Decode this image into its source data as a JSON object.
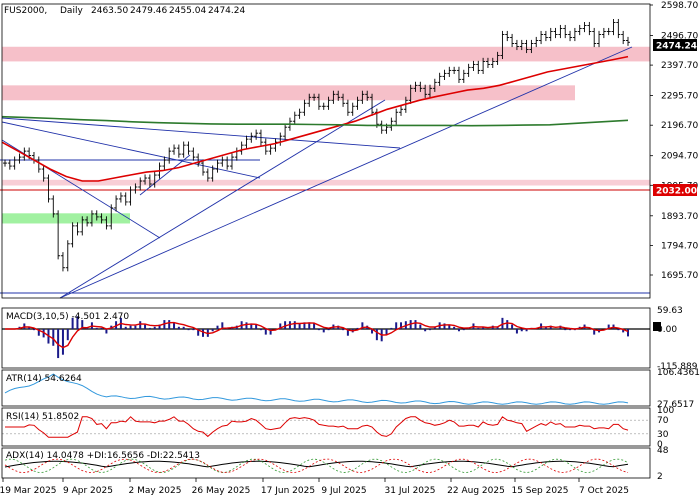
{
  "chart_data": {
    "type": "line",
    "symbol": "FUS2000,",
    "timeframe": "Daily",
    "ohlc": {
      "open": "2463.50",
      "high": "2479.46",
      "low": "2455.04",
      "close": "2474.24"
    },
    "last_price_label": "2474.24",
    "level_label": "2032.00",
    "price_ticks": [
      "2598.70",
      "2496.70",
      "2397.70",
      "2295.70",
      "2196.70",
      "2094.70",
      "1995.70",
      "1893.70",
      "1794.70",
      "1695.70"
    ],
    "price_tick_values": [
      2598.7,
      2496.7,
      2397.7,
      2295.7,
      2196.7,
      2094.7,
      1995.7,
      1893.7,
      1794.7,
      1695.7
    ],
    "date_ticks": [
      "19 Mar 2025",
      "9 Apr 2025",
      "2 May 2025",
      "26 May 2025",
      "17 Jun 2025",
      "9 Jul 2025",
      "31 Jul 2025",
      "22 Aug 2025",
      "15 Sep 2025",
      "7 Oct 2025"
    ],
    "close_series": [
      2070,
      2060,
      2080,
      2090,
      2110,
      2095,
      2080,
      2050,
      2020,
      1950,
      1900,
      1760,
      1720,
      1800,
      1860,
      1840,
      1880,
      1870,
      1900,
      1890,
      1880,
      1860,
      1920,
      1950,
      1960,
      1940,
      1980,
      1990,
      2010,
      2020,
      2000,
      2030,
      2060,
      2080,
      2110,
      2120,
      2100,
      2130,
      2110,
      2090,
      2070,
      2040,
      2020,
      2050,
      2070,
      2080,
      2060,
      2090,
      2110,
      2130,
      2150,
      2160,
      2170,
      2140,
      2110,
      2120,
      2140,
      2160,
      2190,
      2210,
      2230,
      2240,
      2270,
      2290,
      2290,
      2260,
      2260,
      2280,
      2300,
      2290,
      2270,
      2240,
      2260,
      2280,
      2300,
      2290,
      2240,
      2200,
      2180,
      2190,
      2210,
      2240,
      2250,
      2280,
      2320,
      2330,
      2320,
      2300,
      2320,
      2340,
      2360,
      2370,
      2380,
      2380,
      2350,
      2370,
      2390,
      2400,
      2380,
      2410,
      2400,
      2410,
      2430,
      2500,
      2490,
      2470,
      2460,
      2470,
      2450,
      2470,
      2480,
      2500,
      2490,
      2510,
      2500,
      2520,
      2500,
      2490,
      2510,
      2520,
      2530,
      2510,
      2470,
      2500,
      2510,
      2510,
      2540,
      2500,
      2480,
      2474
    ],
    "ma_fast": {
      "color": "#dd0000",
      "values": [
        2140,
        2110,
        2080,
        2050,
        2025,
        2010,
        2010,
        2020,
        2030,
        2040,
        2045,
        2055,
        2070,
        2085,
        2100,
        2115,
        2125,
        2135,
        2150,
        2165,
        2180,
        2195,
        2210,
        2230,
        2250,
        2265,
        2280,
        2292,
        2303,
        2314,
        2320,
        2330,
        2345,
        2360,
        2375,
        2385,
        2395,
        2405,
        2415,
        2426
      ]
    },
    "ma_slow": {
      "color": "#2d7a2d",
      "values": [
        2225,
        2222,
        2219,
        2215,
        2212,
        2208,
        2205,
        2203,
        2201,
        2200,
        2200,
        2200,
        2199,
        2198,
        2196,
        2196,
        2196,
        2196,
        2195,
        2196,
        2197,
        2198,
        2203,
        2208,
        2213
      ]
    },
    "resistance_zones": [
      [
        2410,
        2459
      ],
      [
        2280,
        2330
      ],
      [
        1995,
        2014
      ],
      [
        1868,
        1902
      ]
    ],
    "macd": {
      "label": "MACD(3,10,5) -4.501 2.470",
      "ticks": [
        "59.63",
        "0.00",
        "-115.889"
      ],
      "tick_values": [
        59.63,
        0,
        -115.889
      ]
    },
    "atr": {
      "label": "ATR(14) 54.6264",
      "ticks": [
        "106.4361",
        "27.6517"
      ],
      "tick_values": [
        106.4361,
        27.6517
      ]
    },
    "rsi": {
      "label": "RSI(14) 51.8502",
      "ticks": [
        "100",
        "70",
        "30",
        "0"
      ],
      "tick_values": [
        100,
        70,
        30,
        0
      ]
    },
    "adx": {
      "label": "ADX(14) 14.0478 +DI:16.5656 -DI:22.5413",
      "ticks": [
        "48",
        "2"
      ],
      "tick_values": [
        48,
        2
      ]
    }
  }
}
